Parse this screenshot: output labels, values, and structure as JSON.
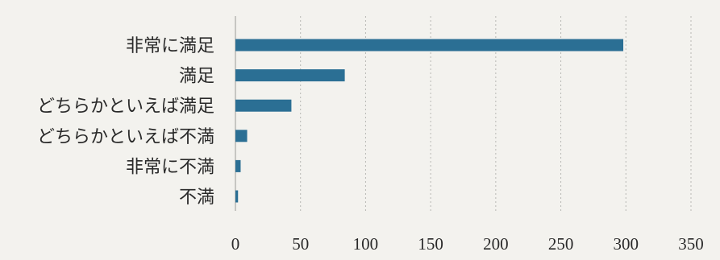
{
  "chart_data": {
    "type": "bar",
    "orientation": "horizontal",
    "categories": [
      "非常に満足",
      "満足",
      "どちらかといえば満足",
      "どちらかといえば不満",
      "非常に不満",
      "不満"
    ],
    "values": [
      298,
      84,
      43,
      9,
      4,
      2
    ],
    "xlim": [
      0,
      350
    ],
    "xticks": [
      "0",
      "50",
      "100",
      "150",
      "200",
      "250",
      "300",
      "350"
    ],
    "grid": true,
    "bar_color": "#2b6f94",
    "title": "",
    "xlabel": "",
    "ylabel": ""
  }
}
